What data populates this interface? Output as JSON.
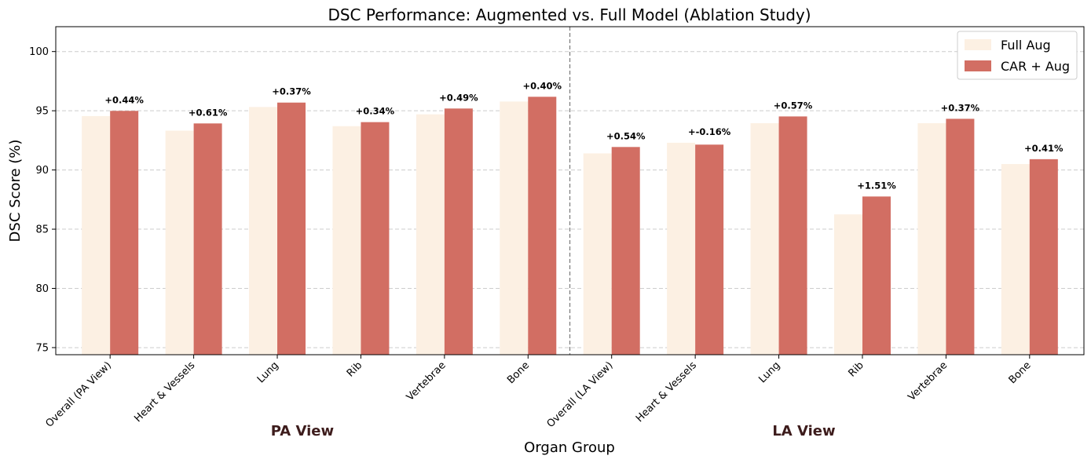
{
  "chart_data": {
    "type": "bar",
    "title": "DSC Performance: Augmented vs. Full Model (Ablation Study)",
    "xlabel": "Organ Group",
    "ylabel": "DSC Score (%)",
    "ylim": [
      74.4,
      102.1
    ],
    "yticks": [
      75,
      80,
      85,
      90,
      95,
      100
    ],
    "grid": true,
    "legend_position": "top-right",
    "categories": [
      "Overall (PA View)",
      "Heart & Vessels",
      "Lung",
      "Rib",
      "Vertebrae",
      "Bone",
      "Overall (LA View)",
      "Heart & Vessels",
      "Lung",
      "Rib",
      "Vertebrae",
      "Bone"
    ],
    "groups": [
      {
        "label": "PA View",
        "start": 0,
        "end": 5
      },
      {
        "label": "LA View",
        "start": 6,
        "end": 11
      }
    ],
    "series": [
      {
        "name": "Full Aug",
        "color": "#fcf0e3",
        "values": [
          94.55,
          93.32,
          95.32,
          93.7,
          94.7,
          95.78,
          91.4,
          92.3,
          93.95,
          86.25,
          93.95,
          90.5
        ]
      },
      {
        "name": "CAR + Aug",
        "color": "#d26e63",
        "values": [
          94.99,
          93.93,
          95.69,
          94.04,
          95.19,
          96.18,
          91.94,
          92.14,
          94.52,
          87.76,
          94.32,
          90.91
        ]
      }
    ],
    "annotations": [
      "+0.44%",
      "+0.61%",
      "+0.37%",
      "+0.34%",
      "+0.49%",
      "+0.40%",
      "+0.54%",
      "+-0.16%",
      "+0.57%",
      "+1.51%",
      "+0.37%",
      "+0.41%"
    ],
    "group_label_color": "#3d1c1c",
    "divider_color": "#808080"
  }
}
